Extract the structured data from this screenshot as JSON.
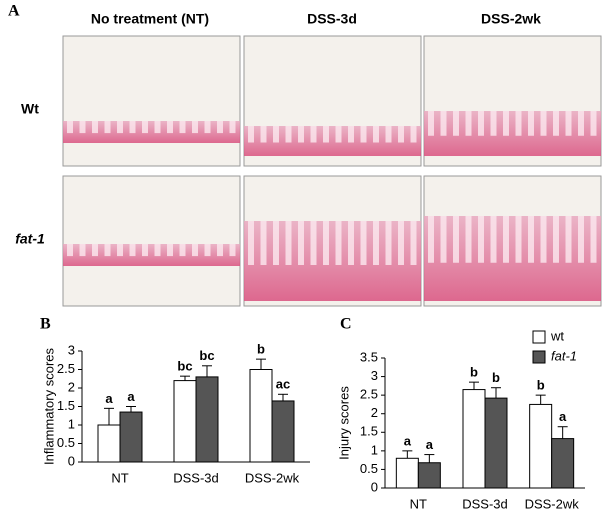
{
  "panels": {
    "a": {
      "label": "A",
      "columns": [
        "No treatment (NT)",
        "DSS-3d",
        "DSS-2wk"
      ],
      "rows": [
        "Wt",
        "fat-1"
      ]
    }
  },
  "chart_data": [
    {
      "type": "bar",
      "label": "B",
      "y_label": "Inflammatory scores",
      "categories": [
        "NT",
        "DSS-3d",
        "DSS-2wk"
      ],
      "series": [
        {
          "name": "wt",
          "color": "#ffffff",
          "values": [
            1.0,
            2.2,
            2.5
          ],
          "errors": [
            0.45,
            0.12,
            0.28
          ],
          "letters": [
            "a",
            "bc",
            "b"
          ]
        },
        {
          "name": "fat-1",
          "color": "#555555",
          "values": [
            1.35,
            2.3,
            1.65
          ],
          "errors": [
            0.15,
            0.3,
            0.18
          ],
          "letters": [
            "a",
            "bc",
            "ac"
          ]
        }
      ],
      "ylim": [
        0,
        3
      ],
      "yticks": [
        0,
        0.5,
        1,
        1.5,
        2,
        2.5,
        3
      ]
    },
    {
      "type": "bar",
      "label": "C",
      "y_label": "Injury scores",
      "categories": [
        "NT",
        "DSS-3d",
        "DSS-2wk"
      ],
      "series": [
        {
          "name": "wt",
          "color": "#ffffff",
          "values": [
            0.8,
            2.65,
            2.25
          ],
          "errors": [
            0.2,
            0.2,
            0.25
          ],
          "letters": [
            "a",
            "b",
            "b"
          ]
        },
        {
          "name": "fat-1",
          "color": "#555555",
          "values": [
            0.68,
            2.42,
            1.33
          ],
          "errors": [
            0.22,
            0.28,
            0.32
          ],
          "letters": [
            "a",
            "b",
            "a"
          ]
        }
      ],
      "ylim": [
        0,
        3.5
      ],
      "yticks": [
        0,
        0.5,
        1,
        1.5,
        2,
        2.5,
        3,
        3.5
      ],
      "legend": "top-right"
    }
  ]
}
